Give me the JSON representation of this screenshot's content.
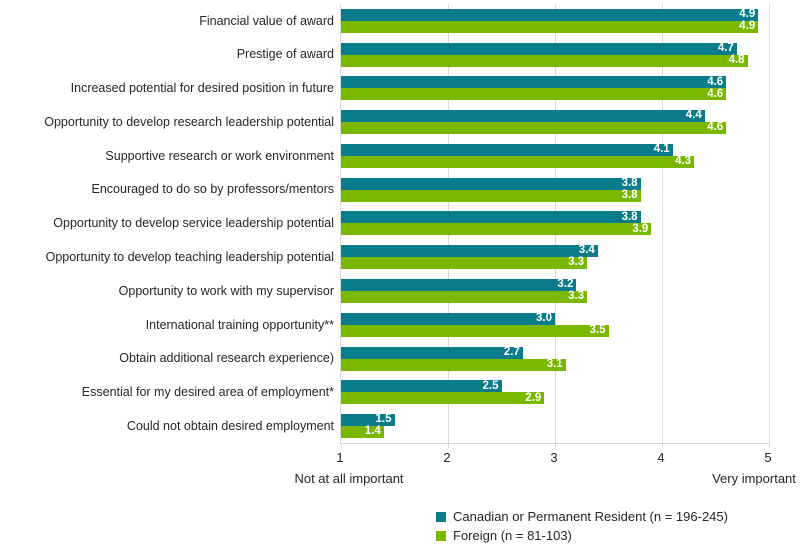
{
  "chart_data": {
    "type": "bar",
    "orientation": "horizontal",
    "categories": [
      "Financial value of award",
      "Prestige of award",
      "Increased potential for desired position in future",
      "Opportunity to develop research leadership potential",
      "Supportive research or work environment",
      "Encouraged to do so by professors/mentors",
      "Opportunity to develop service leadership potential",
      "Opportunity to develop teaching leadership potential",
      "Opportunity to work with my supervisor",
      "International training opportunity**",
      "Obtain additional research experience)",
      "Essential for my desired area of employment*",
      "Could not obtain desired employment"
    ],
    "series": [
      {
        "name": "Canadian or Permanent Resident (n = 196-245)",
        "color": "#0A7C8C",
        "values": [
          4.9,
          4.7,
          4.6,
          4.4,
          4.1,
          3.8,
          3.8,
          3.4,
          3.2,
          3.0,
          2.7,
          2.5,
          1.5
        ]
      },
      {
        "name": "Foreign (n = 81-103)",
        "color": "#7AB800",
        "values": [
          4.9,
          4.8,
          4.6,
          4.6,
          4.3,
          3.8,
          3.9,
          3.3,
          3.3,
          3.5,
          3.1,
          2.9,
          1.4
        ]
      }
    ],
    "xlim": [
      1,
      5
    ],
    "x_ticks": [
      "1",
      "2",
      "3",
      "4",
      "5"
    ],
    "x_axis_left_label": "Not at all important",
    "x_axis_right_label": "Very important",
    "grid": true,
    "legend_position": "bottom-right",
    "gridline_color": "#d9d9d9",
    "value_label_color": "#ffffff"
  }
}
